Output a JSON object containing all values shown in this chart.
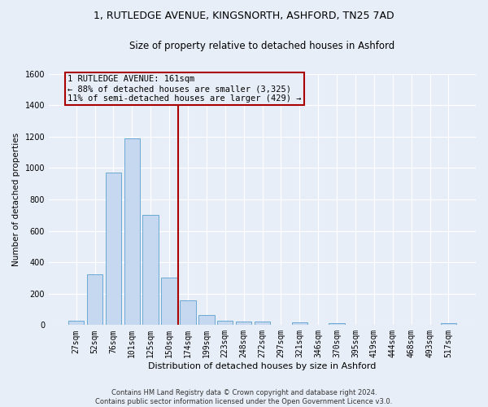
{
  "title1": "1, RUTLEDGE AVENUE, KINGSNORTH, ASHFORD, TN25 7AD",
  "title2": "Size of property relative to detached houses in Ashford",
  "xlabel": "Distribution of detached houses by size in Ashford",
  "ylabel": "Number of detached properties",
  "footer1": "Contains HM Land Registry data © Crown copyright and database right 2024.",
  "footer2": "Contains public sector information licensed under the Open Government Licence v3.0.",
  "bar_labels": [
    "27sqm",
    "52sqm",
    "76sqm",
    "101sqm",
    "125sqm",
    "150sqm",
    "174sqm",
    "199sqm",
    "223sqm",
    "248sqm",
    "272sqm",
    "297sqm",
    "321sqm",
    "346sqm",
    "370sqm",
    "395sqm",
    "419sqm",
    "444sqm",
    "468sqm",
    "493sqm",
    "517sqm"
  ],
  "bar_values": [
    30,
    325,
    970,
    1190,
    700,
    300,
    155,
    65,
    30,
    20,
    20,
    0,
    15,
    0,
    10,
    0,
    0,
    0,
    0,
    0,
    12
  ],
  "bar_color": "#c5d8f0",
  "bar_edge_color": "#6aaad4",
  "ylim": [
    0,
    1600
  ],
  "yticks": [
    0,
    200,
    400,
    600,
    800,
    1000,
    1200,
    1400,
    1600
  ],
  "vline_color": "#aa0000",
  "annotation_line1": "1 RUTLEDGE AVENUE: 161sqm",
  "annotation_line2": "← 88% of detached houses are smaller (3,325)",
  "annotation_line3": "11% of semi-detached houses are larger (429) →",
  "annotation_box_color": "#aa0000",
  "background_color": "#e8eef8",
  "grid_color": "#ffffff",
  "title1_fontsize": 9,
  "title2_fontsize": 8.5,
  "xlabel_fontsize": 8,
  "ylabel_fontsize": 7.5,
  "tick_fontsize": 7,
  "annotation_fontsize": 7.5,
  "footer_fontsize": 6
}
